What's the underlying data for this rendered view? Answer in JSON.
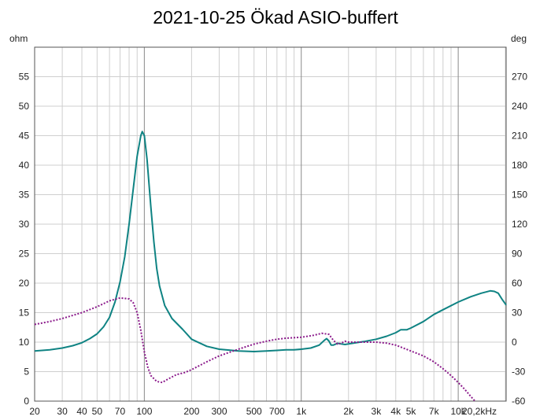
{
  "chart_data": {
    "type": "line",
    "title": "2021-10-25 Ökad ASIO-buffert",
    "x_scale": "log",
    "xlim": [
      20,
      20200
    ],
    "x_ticks": [
      {
        "value": 20,
        "label": "20"
      },
      {
        "value": 30,
        "label": "30"
      },
      {
        "value": 40,
        "label": "40"
      },
      {
        "value": 50,
        "label": "50"
      },
      {
        "value": 70,
        "label": "70"
      },
      {
        "value": 100,
        "label": "100"
      },
      {
        "value": 200,
        "label": "200"
      },
      {
        "value": 300,
        "label": "300"
      },
      {
        "value": 500,
        "label": "500"
      },
      {
        "value": 700,
        "label": "700"
      },
      {
        "value": 1000,
        "label": "1k"
      },
      {
        "value": 2000,
        "label": "2k"
      },
      {
        "value": 3000,
        "label": "3k"
      },
      {
        "value": 4000,
        "label": "4k"
      },
      {
        "value": 5000,
        "label": "5k"
      },
      {
        "value": 7000,
        "label": "7k"
      },
      {
        "value": 10000,
        "label": "10k"
      },
      {
        "value": 20200,
        "label": "20,2kHz"
      }
    ],
    "y_left": {
      "unit": "ohm",
      "lim": [
        0,
        60
      ],
      "ticks": [
        0,
        5,
        10,
        15,
        20,
        25,
        30,
        35,
        40,
        45,
        50,
        55
      ]
    },
    "y_right": {
      "unit": "deg",
      "lim": [
        -60,
        300
      ],
      "ticks": [
        -60,
        -30,
        0,
        30,
        60,
        90,
        120,
        150,
        180,
        210,
        240,
        270
      ]
    },
    "grid": true,
    "series": [
      {
        "axis": "left",
        "color": "#0f8383",
        "style": "solid",
        "points": [
          [
            20,
            8.5
          ],
          [
            25,
            8.7
          ],
          [
            30,
            9.0
          ],
          [
            35,
            9.4
          ],
          [
            40,
            9.9
          ],
          [
            45,
            10.6
          ],
          [
            50,
            11.4
          ],
          [
            55,
            12.6
          ],
          [
            60,
            14.2
          ],
          [
            65,
            16.8
          ],
          [
            70,
            20.2
          ],
          [
            75,
            24.5
          ],
          [
            80,
            30.0
          ],
          [
            85,
            36.0
          ],
          [
            90,
            41.5
          ],
          [
            95,
            45.0
          ],
          [
            97,
            45.7
          ],
          [
            100,
            45.0
          ],
          [
            104,
            41.0
          ],
          [
            110,
            33.0
          ],
          [
            115,
            27.0
          ],
          [
            120,
            22.5
          ],
          [
            125,
            19.5
          ],
          [
            135,
            16.2
          ],
          [
            150,
            14.0
          ],
          [
            175,
            12.2
          ],
          [
            200,
            10.5
          ],
          [
            250,
            9.3
          ],
          [
            300,
            8.8
          ],
          [
            400,
            8.5
          ],
          [
            500,
            8.4
          ],
          [
            600,
            8.5
          ],
          [
            700,
            8.6
          ],
          [
            800,
            8.7
          ],
          [
            900,
            8.7
          ],
          [
            1000,
            8.8
          ],
          [
            1150,
            9.0
          ],
          [
            1300,
            9.5
          ],
          [
            1400,
            10.3
          ],
          [
            1450,
            10.6
          ],
          [
            1500,
            10.2
          ],
          [
            1550,
            9.5
          ],
          [
            1600,
            9.5
          ],
          [
            1700,
            9.8
          ],
          [
            1800,
            9.7
          ],
          [
            1900,
            9.6
          ],
          [
            2000,
            9.7
          ],
          [
            2500,
            10.1
          ],
          [
            3000,
            10.5
          ],
          [
            3500,
            11.0
          ],
          [
            4000,
            11.6
          ],
          [
            4300,
            12.1
          ],
          [
            4700,
            12.1
          ],
          [
            5000,
            12.4
          ],
          [
            6000,
            13.5
          ],
          [
            7000,
            14.7
          ],
          [
            8000,
            15.5
          ],
          [
            10000,
            16.8
          ],
          [
            12000,
            17.7
          ],
          [
            14000,
            18.3
          ],
          [
            16000,
            18.7
          ],
          [
            17000,
            18.6
          ],
          [
            18000,
            18.3
          ],
          [
            19000,
            17.3
          ],
          [
            20200,
            16.3
          ]
        ]
      },
      {
        "axis": "right",
        "color": "#8b1a8b",
        "style": "dotted",
        "points": [
          [
            20,
            18
          ],
          [
            25,
            21
          ],
          [
            30,
            24
          ],
          [
            40,
            30
          ],
          [
            50,
            36
          ],
          [
            60,
            42
          ],
          [
            70,
            45
          ],
          [
            80,
            44
          ],
          [
            85,
            40
          ],
          [
            90,
            30
          ],
          [
            95,
            12
          ],
          [
            100,
            -10
          ],
          [
            105,
            -25
          ],
          [
            110,
            -34
          ],
          [
            120,
            -40
          ],
          [
            130,
            -41
          ],
          [
            140,
            -38
          ],
          [
            160,
            -33
          ],
          [
            180,
            -31
          ],
          [
            200,
            -28
          ],
          [
            250,
            -20
          ],
          [
            300,
            -14
          ],
          [
            400,
            -7
          ],
          [
            500,
            -2
          ],
          [
            600,
            1
          ],
          [
            700,
            3
          ],
          [
            800,
            4
          ],
          [
            1000,
            5
          ],
          [
            1200,
            7
          ],
          [
            1350,
            9
          ],
          [
            1500,
            8
          ],
          [
            1600,
            2
          ],
          [
            1700,
            -2
          ],
          [
            1800,
            -1
          ],
          [
            1900,
            1
          ],
          [
            2000,
            0
          ],
          [
            2500,
            0
          ],
          [
            3000,
            0
          ],
          [
            3500,
            -1
          ],
          [
            4000,
            -3
          ],
          [
            5000,
            -9
          ],
          [
            6000,
            -14
          ],
          [
            7000,
            -20
          ],
          [
            8000,
            -27
          ],
          [
            9000,
            -34
          ],
          [
            10000,
            -41
          ],
          [
            11000,
            -48
          ],
          [
            12000,
            -55
          ],
          [
            12800,
            -60
          ]
        ]
      }
    ]
  }
}
